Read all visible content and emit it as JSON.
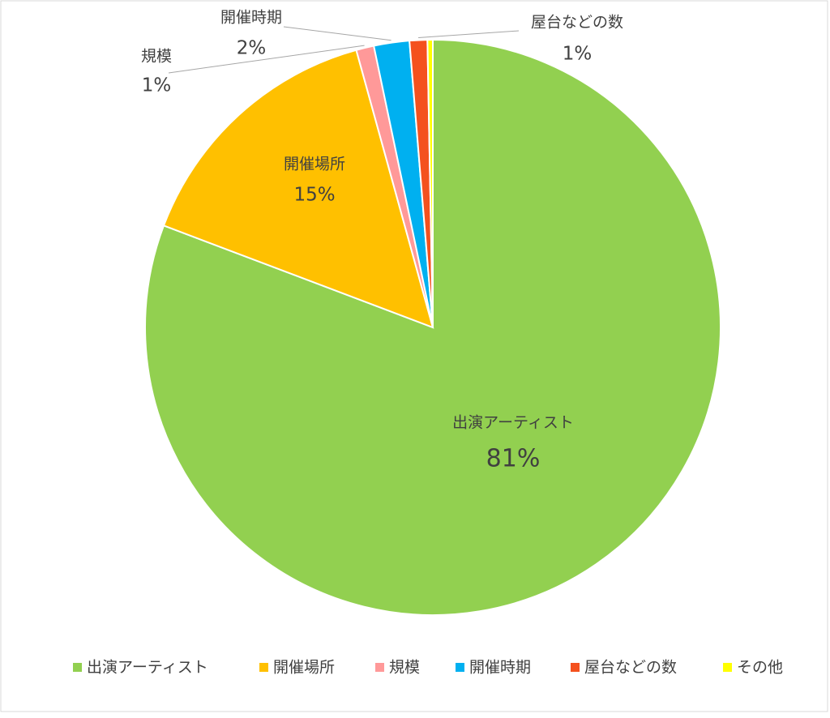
{
  "chart_data": {
    "type": "pie",
    "categories": [
      "出演アーティスト",
      "開催場所",
      "規模",
      "開催時期",
      "屋台などの数",
      "その他"
    ],
    "values": [
      81,
      15,
      1,
      2,
      1,
      0.3
    ],
    "value_labels": [
      "81%",
      "15%",
      "1%",
      "2%",
      "1%",
      null
    ],
    "colors": [
      "#92d050",
      "#ffc000",
      "#ff9999",
      "#00b0f0",
      "#f4511e",
      "#ffff00"
    ],
    "legend": "bottom"
  }
}
